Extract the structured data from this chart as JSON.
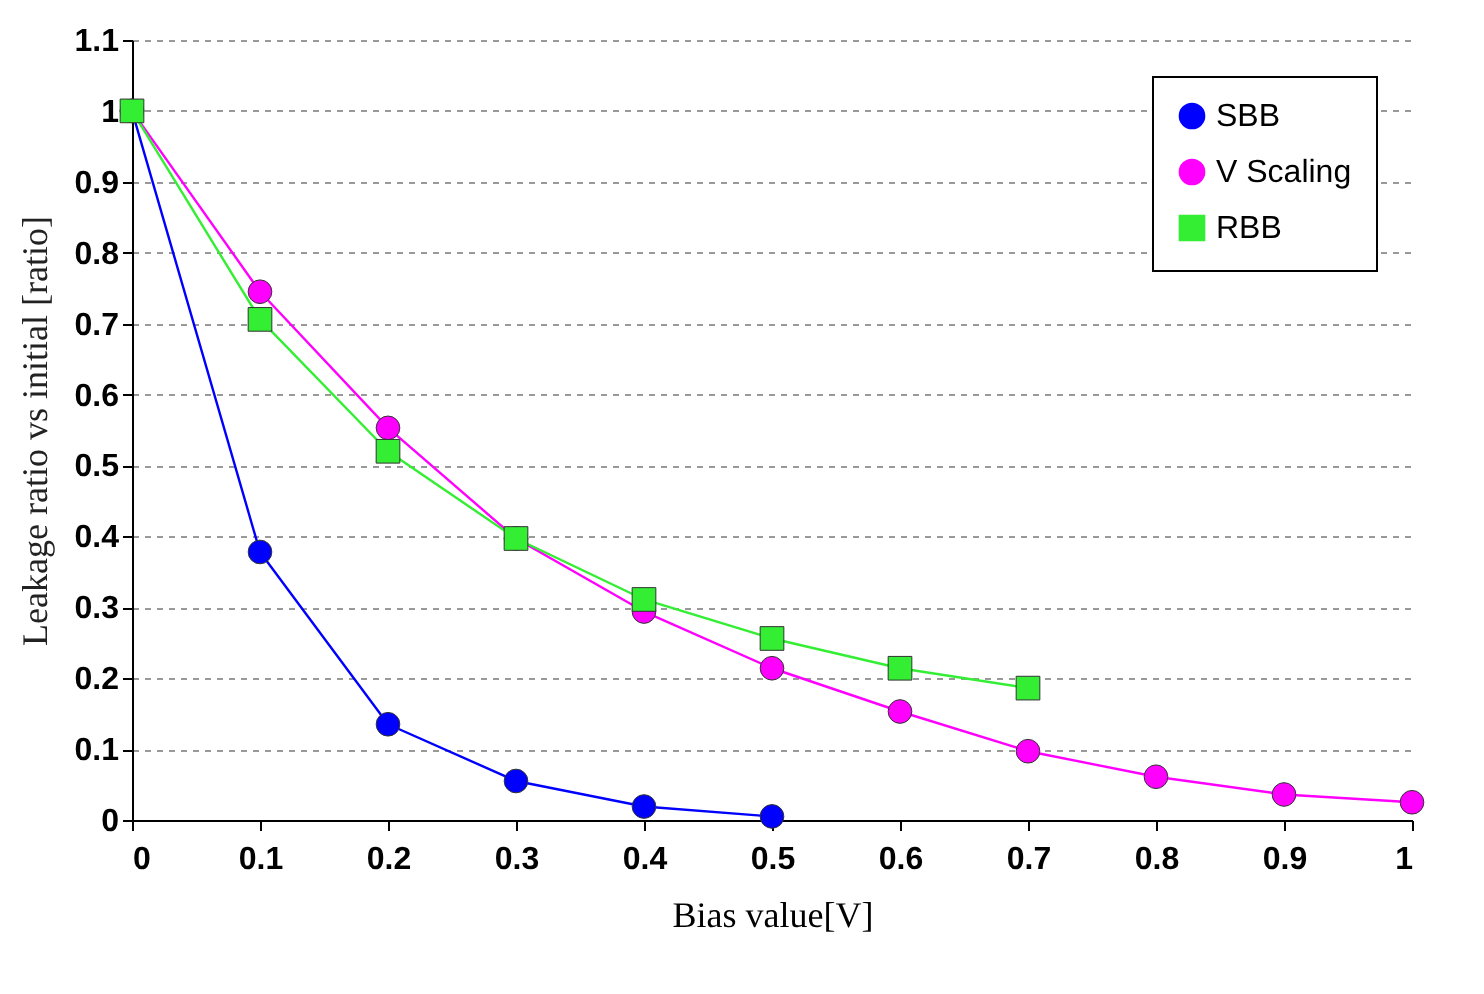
{
  "chart_data": {
    "type": "line",
    "xlabel": "Bias value[V]",
    "ylabel": "Leakage ratio vs initial [ratio]",
    "xlim": [
      0,
      1
    ],
    "xticks": [
      0,
      0.1,
      0.2,
      0.3,
      0.4,
      0.5,
      0.6,
      0.7,
      0.8,
      0.9,
      1
    ],
    "ylim": [
      0,
      1.1
    ],
    "yticks": [
      0,
      0.1,
      0.2,
      0.3,
      0.4,
      0.5,
      0.6,
      0.7,
      0.8,
      0.9,
      1,
      1.1
    ],
    "grid": "y",
    "legend": "top right",
    "series": [
      {
        "name": "SBB",
        "color": "#0000ff",
        "marker": "circle",
        "x": [
          0,
          0.1,
          0.2,
          0.3,
          0.4,
          0.5
        ],
        "values": [
          1,
          0.378,
          0.135,
          0.055,
          0.019,
          0.005
        ]
      },
      {
        "name": "V Scaling",
        "color": "#ff00ff",
        "marker": "circle",
        "x": [
          0,
          0.1,
          0.2,
          0.3,
          0.4,
          0.5,
          0.6,
          0.7,
          0.8,
          0.9,
          1
        ],
        "values": [
          1,
          0.745,
          0.553,
          0.397,
          0.294,
          0.214,
          0.153,
          0.097,
          0.061,
          0.036,
          0.025
        ]
      },
      {
        "name": "RBB",
        "color": "#33ee33",
        "marker": "square",
        "x": [
          0,
          0.1,
          0.2,
          0.3,
          0.4,
          0.5,
          0.6,
          0.7
        ],
        "values": [
          1,
          0.706,
          0.52,
          0.397,
          0.311,
          0.256,
          0.214,
          0.186
        ]
      }
    ]
  }
}
